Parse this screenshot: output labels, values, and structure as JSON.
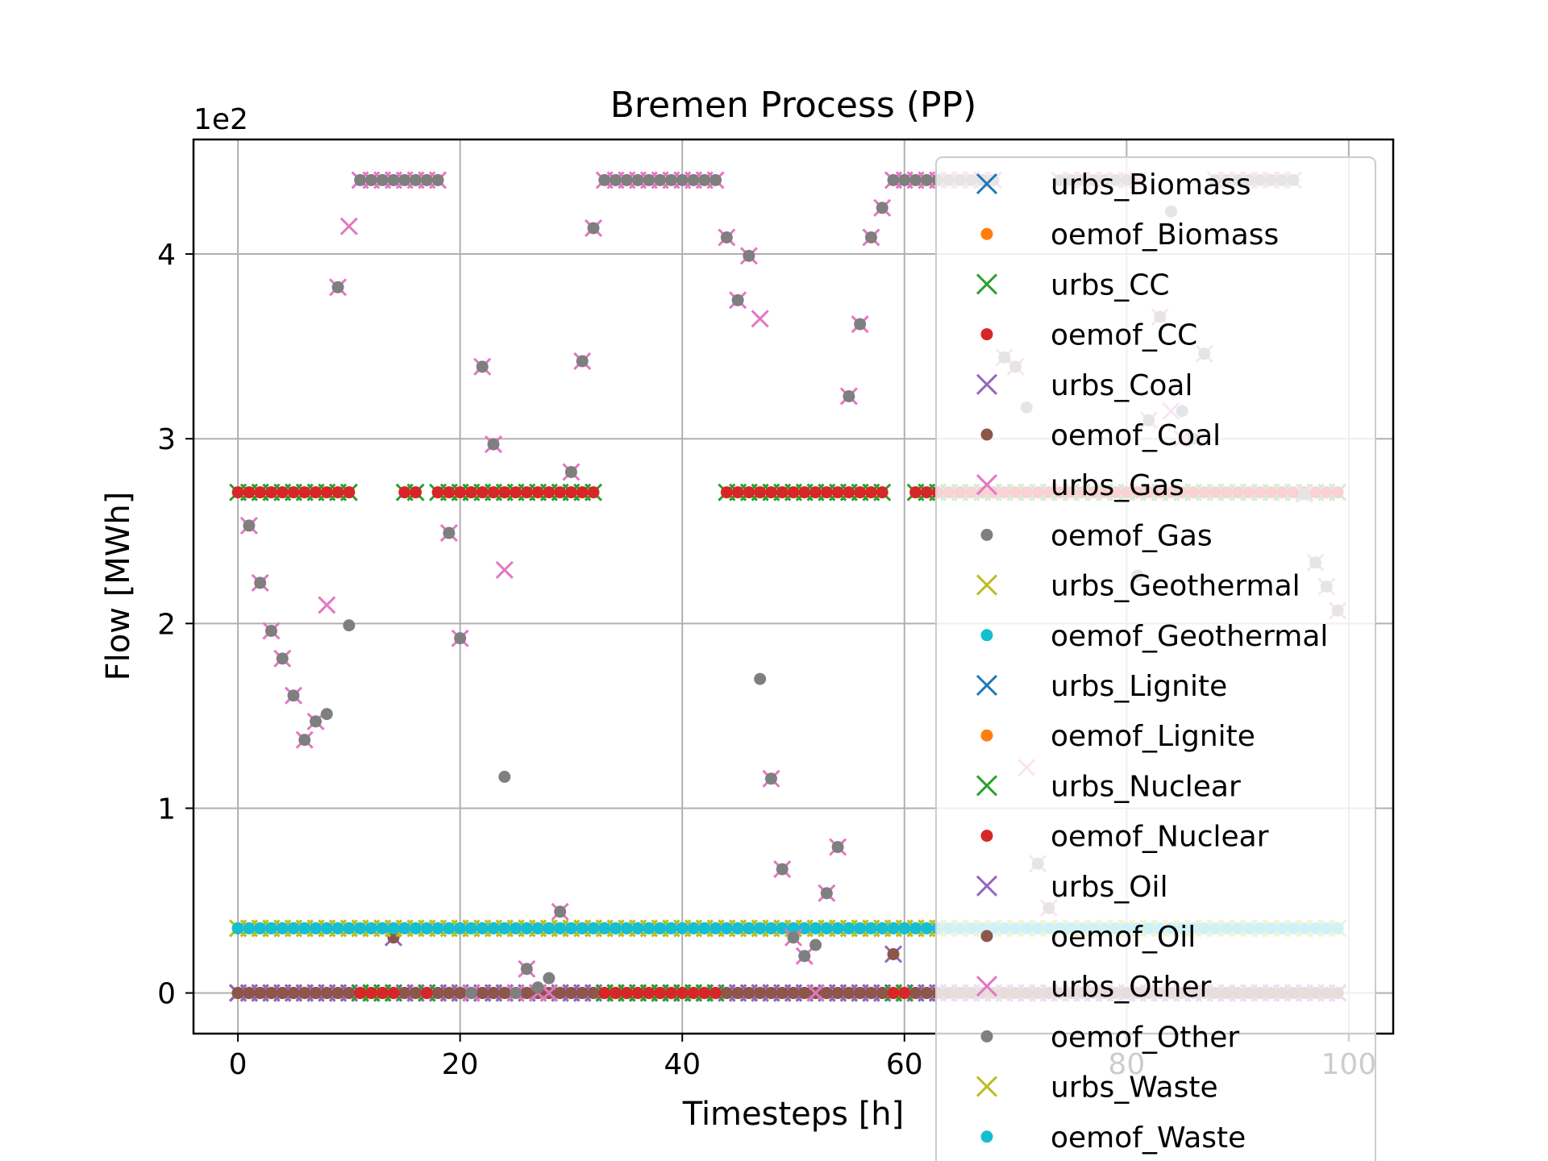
{
  "chart_data": {
    "type": "scatter",
    "title": "Bremen Process (PP)",
    "xlabel": "Timesteps [h]",
    "ylabel": "Flow [MWh]",
    "y_offset_label": "1e2",
    "xlim": [
      -4,
      104
    ],
    "ylim": [
      -22,
      462
    ],
    "x_ticks": [
      0,
      20,
      40,
      60,
      80,
      100
    ],
    "y_ticks": [
      0,
      100,
      200,
      300,
      400
    ],
    "y_tick_labels": [
      "0",
      "1",
      "2",
      "3",
      "4"
    ],
    "grid": true,
    "legend_placement": "right",
    "series": [
      {
        "name": "urbs_Biomass",
        "marker": "x",
        "color": "#1f77b4",
        "values": "all-zero"
      },
      {
        "name": "oemof_Biomass",
        "marker": "dot",
        "color": "#ff7f0e",
        "values": "all-zero"
      },
      {
        "name": "urbs_CC",
        "marker": "x",
        "color": "#2ca02c",
        "values": "constant-271"
      },
      {
        "name": "oemof_CC",
        "marker": "dot",
        "color": "#d62728",
        "values": "constant-271"
      },
      {
        "name": "urbs_Coal",
        "marker": "x",
        "color": "#9467bd",
        "values": "mostly-zero"
      },
      {
        "name": "oemof_Coal",
        "marker": "dot",
        "color": "#8c564b",
        "values": "mostly-zero"
      },
      {
        "name": "urbs_Gas",
        "marker": "x",
        "color": "#e377c2",
        "values": "gas-profile"
      },
      {
        "name": "oemof_Gas",
        "marker": "dot",
        "color": "#7f7f7f",
        "values": "gas-profile"
      },
      {
        "name": "urbs_Geothermal",
        "marker": "x",
        "color": "#bcbd22",
        "values": "constant-35"
      },
      {
        "name": "oemof_Geothermal",
        "marker": "dot",
        "color": "#17becf",
        "values": "constant-35"
      },
      {
        "name": "urbs_Lignite",
        "marker": "x",
        "color": "#1f77b4",
        "values": "all-zero"
      },
      {
        "name": "oemof_Lignite",
        "marker": "dot",
        "color": "#ff7f0e",
        "values": "all-zero"
      },
      {
        "name": "urbs_Nuclear",
        "marker": "x",
        "color": "#2ca02c",
        "values": "mostly-zero"
      },
      {
        "name": "oemof_Nuclear",
        "marker": "dot",
        "color": "#d62728",
        "values": "mostly-zero"
      },
      {
        "name": "urbs_Oil",
        "marker": "x",
        "color": "#9467bd",
        "values": "mostly-zero"
      },
      {
        "name": "oemof_Oil",
        "marker": "dot",
        "color": "#8c564b",
        "values": "mostly-zero"
      },
      {
        "name": "urbs_Other",
        "marker": "x",
        "color": "#e377c2",
        "values": "all-zero"
      },
      {
        "name": "oemof_Other",
        "marker": "dot",
        "color": "#7f7f7f",
        "values": "all-zero"
      },
      {
        "name": "urbs_Waste",
        "marker": "x",
        "color": "#bcbd22",
        "values": "constant-35"
      },
      {
        "name": "oemof_Waste",
        "marker": "dot",
        "color": "#17becf",
        "values": "constant-35"
      }
    ],
    "gas_urbs": [
      [
        1,
        253
      ],
      [
        2,
        222
      ],
      [
        3,
        196
      ],
      [
        4,
        181
      ],
      [
        5,
        161
      ],
      [
        6,
        137
      ],
      [
        7,
        147
      ],
      [
        8,
        210
      ],
      [
        9,
        382
      ],
      [
        10,
        415
      ],
      [
        11,
        440
      ],
      [
        12,
        440
      ],
      [
        13,
        440
      ],
      [
        14,
        440
      ],
      [
        15,
        440
      ],
      [
        16,
        440
      ],
      [
        17,
        440
      ],
      [
        18,
        440
      ],
      [
        19,
        249
      ],
      [
        20,
        192
      ],
      [
        21,
        0
      ],
      [
        22,
        339
      ],
      [
        23,
        297
      ],
      [
        24,
        229
      ],
      [
        25,
        0
      ],
      [
        26,
        13
      ],
      [
        27,
        0
      ],
      [
        28,
        0
      ],
      [
        29,
        44
      ],
      [
        30,
        282
      ],
      [
        31,
        342
      ],
      [
        32,
        414
      ],
      [
        33,
        440
      ],
      [
        34,
        440
      ],
      [
        35,
        440
      ],
      [
        36,
        440
      ],
      [
        37,
        440
      ],
      [
        38,
        440
      ],
      [
        39,
        440
      ],
      [
        40,
        440
      ],
      [
        41,
        440
      ],
      [
        42,
        440
      ],
      [
        43,
        440
      ],
      [
        44,
        409
      ],
      [
        45,
        375
      ],
      [
        46,
        399
      ],
      [
        47,
        365
      ],
      [
        48,
        116
      ],
      [
        49,
        67
      ],
      [
        50,
        30
      ],
      [
        51,
        20
      ],
      [
        52,
        0
      ],
      [
        53,
        54
      ],
      [
        54,
        79
      ],
      [
        55,
        323
      ],
      [
        56,
        362
      ],
      [
        57,
        409
      ],
      [
        58,
        425
      ],
      [
        59,
        440
      ],
      [
        60,
        440
      ],
      [
        61,
        440
      ],
      [
        62,
        440
      ],
      [
        63,
        440
      ],
      [
        64,
        440
      ],
      [
        65,
        440
      ],
      [
        66,
        440
      ],
      [
        67,
        440
      ],
      [
        68,
        440
      ],
      [
        69,
        344
      ],
      [
        70,
        339
      ],
      [
        71,
        122
      ],
      [
        72,
        70
      ],
      [
        73,
        46
      ],
      [
        74,
        440
      ],
      [
        75,
        440
      ],
      [
        76,
        440
      ],
      [
        77,
        440
      ],
      [
        78,
        440
      ],
      [
        79,
        440
      ],
      [
        80,
        440
      ],
      [
        81,
        440
      ],
      [
        82,
        310
      ],
      [
        83,
        366
      ],
      [
        84,
        315
      ],
      [
        85,
        300
      ],
      [
        86,
        300
      ],
      [
        87,
        346
      ],
      [
        88,
        440
      ],
      [
        89,
        440
      ],
      [
        90,
        440
      ],
      [
        91,
        440
      ],
      [
        92,
        440
      ],
      [
        93,
        440
      ],
      [
        94,
        440
      ],
      [
        95,
        440
      ],
      [
        96,
        270
      ],
      [
        97,
        233
      ],
      [
        98,
        220
      ],
      [
        99,
        207
      ]
    ],
    "gas_oemof": [
      [
        1,
        253
      ],
      [
        2,
        222
      ],
      [
        3,
        196
      ],
      [
        4,
        181
      ],
      [
        5,
        161
      ],
      [
        6,
        137
      ],
      [
        7,
        147
      ],
      [
        8,
        151
      ],
      [
        9,
        382
      ],
      [
        10,
        199
      ],
      [
        11,
        440
      ],
      [
        12,
        440
      ],
      [
        13,
        440
      ],
      [
        14,
        440
      ],
      [
        15,
        440
      ],
      [
        16,
        440
      ],
      [
        17,
        440
      ],
      [
        18,
        440
      ],
      [
        19,
        249
      ],
      [
        20,
        192
      ],
      [
        21,
        0
      ],
      [
        22,
        339
      ],
      [
        23,
        297
      ],
      [
        24,
        117
      ],
      [
        25,
        0
      ],
      [
        26,
        13
      ],
      [
        27,
        3
      ],
      [
        28,
        8
      ],
      [
        29,
        44
      ],
      [
        30,
        282
      ],
      [
        31,
        342
      ],
      [
        32,
        414
      ],
      [
        33,
        440
      ],
      [
        34,
        440
      ],
      [
        35,
        440
      ],
      [
        36,
        440
      ],
      [
        37,
        440
      ],
      [
        38,
        440
      ],
      [
        39,
        440
      ],
      [
        40,
        440
      ],
      [
        41,
        440
      ],
      [
        42,
        440
      ],
      [
        43,
        440
      ],
      [
        44,
        409
      ],
      [
        45,
        375
      ],
      [
        46,
        399
      ],
      [
        47,
        170
      ],
      [
        48,
        116
      ],
      [
        49,
        67
      ],
      [
        50,
        30
      ],
      [
        51,
        20
      ],
      [
        52,
        26
      ],
      [
        53,
        54
      ],
      [
        54,
        79
      ],
      [
        55,
        323
      ],
      [
        56,
        362
      ],
      [
        57,
        409
      ],
      [
        58,
        425
      ],
      [
        59,
        440
      ],
      [
        60,
        440
      ],
      [
        61,
        440
      ],
      [
        62,
        440
      ],
      [
        63,
        440
      ],
      [
        64,
        440
      ],
      [
        65,
        440
      ],
      [
        66,
        440
      ],
      [
        67,
        440
      ],
      [
        68,
        440
      ],
      [
        69,
        344
      ],
      [
        70,
        339
      ],
      [
        71,
        317
      ],
      [
        72,
        70
      ],
      [
        73,
        46
      ],
      [
        74,
        440
      ],
      [
        75,
        440
      ],
      [
        76,
        440
      ],
      [
        77,
        440
      ],
      [
        78,
        440
      ],
      [
        79,
        440
      ],
      [
        80,
        440
      ],
      [
        81,
        226
      ],
      [
        82,
        310
      ],
      [
        83,
        366
      ],
      [
        84,
        423
      ],
      [
        85,
        315
      ],
      [
        86,
        300
      ],
      [
        87,
        346
      ],
      [
        88,
        440
      ],
      [
        89,
        440
      ],
      [
        90,
        440
      ],
      [
        91,
        440
      ],
      [
        92,
        440
      ],
      [
        93,
        440
      ],
      [
        94,
        440
      ],
      [
        95,
        440
      ],
      [
        96,
        270
      ],
      [
        97,
        233
      ],
      [
        98,
        220
      ],
      [
        99,
        207
      ]
    ],
    "cc_zero_x": [
      11,
      12,
      13,
      14,
      17,
      33,
      34,
      35,
      36,
      37,
      38,
      39,
      40,
      41,
      42,
      43,
      59,
      60
    ],
    "coal_x": [
      14
    ],
    "coal_value": 30,
    "oil_x": [
      59
    ],
    "oil_value": 21
  }
}
